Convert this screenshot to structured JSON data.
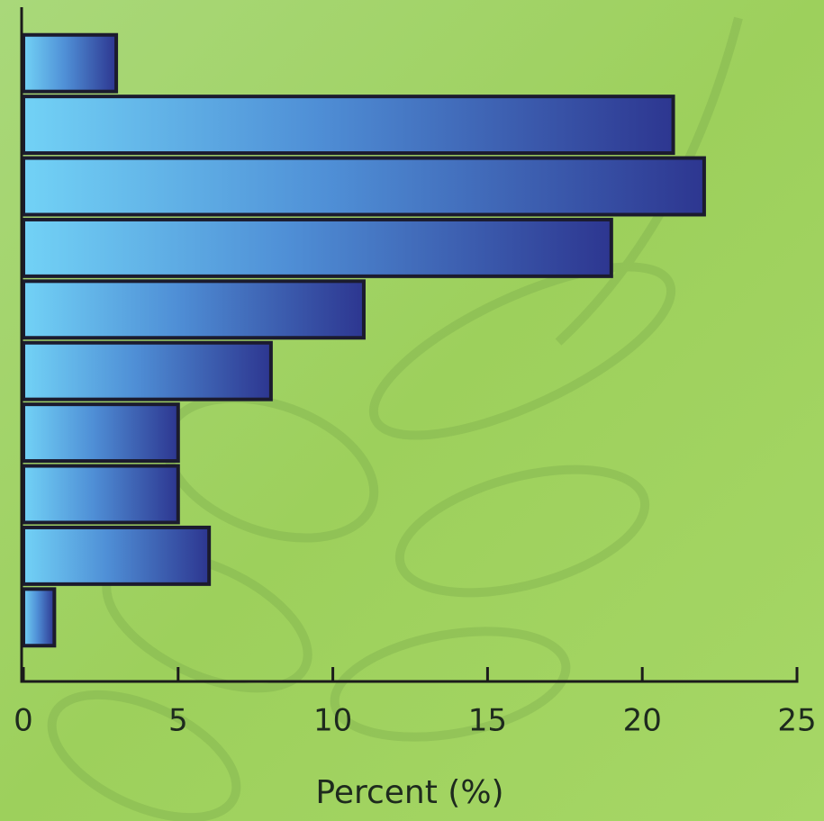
{
  "chart_data": {
    "type": "bar",
    "orientation": "horizontal",
    "x_label": "Percent (%)",
    "categories": [
      null,
      null,
      null,
      null,
      null,
      null,
      null,
      null,
      null,
      null
    ],
    "values": [
      3,
      21,
      22,
      19,
      11,
      8,
      5,
      5,
      6,
      1
    ],
    "color": "#2e3a8c",
    "xlim": [
      0,
      25
    ],
    "xticks": [
      0,
      5,
      10,
      15,
      20,
      25
    ],
    "grid": false
  }
}
